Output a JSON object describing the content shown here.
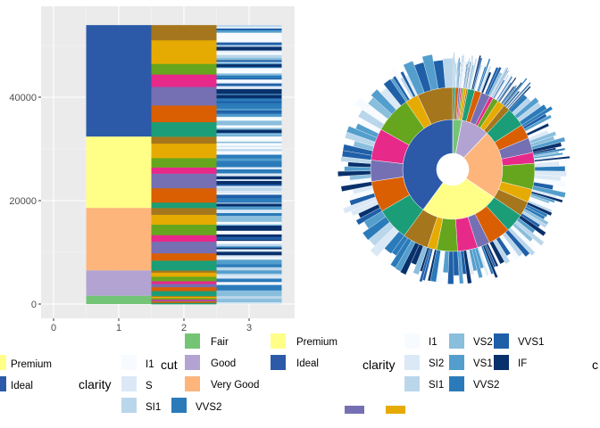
{
  "chart_data": [
    {
      "type": "bar",
      "subtype": "stacked",
      "x": [
        "1",
        "2",
        "3"
      ],
      "x_ticks": [
        "0",
        "1",
        "2",
        "3"
      ],
      "ylim": [
        0,
        55000
      ],
      "y_ticks": [
        0,
        20000,
        40000
      ],
      "y_tick_labels": [
        "0",
        "20000",
        "40000"
      ],
      "grid": true,
      "levels": [
        {
          "x": "1",
          "variable": "cut",
          "segments": [
            {
              "category": "Fair",
              "value": 1610
            },
            {
              "category": "Good",
              "value": 4906
            },
            {
              "category": "Very Good",
              "value": 12082
            },
            {
              "category": "Premium",
              "value": 13791
            },
            {
              "category": "Ideal",
              "value": 21551
            }
          ]
        },
        {
          "x": "2",
          "variable": "color",
          "note": "sequence of colour-coded segments within each cut",
          "segments": [
            {
              "category": "Fair",
              "value": 1610
            },
            {
              "category": "Good",
              "value": 4906
            },
            {
              "category": "Very Good",
              "value": 12082
            },
            {
              "category": "Premium",
              "value": 13791
            },
            {
              "category": "Ideal",
              "value": 21551
            }
          ]
        },
        {
          "x": "3",
          "variable": "clarity",
          "note": "many thin segments in blue shades",
          "segments": []
        }
      ]
    },
    {
      "type": "pie",
      "subtype": "sunburst",
      "rings": [
        "cut",
        "color",
        "clarity"
      ],
      "slices": [
        {
          "category": "Fair",
          "value": 1610
        },
        {
          "category": "Good",
          "value": 4906
        },
        {
          "category": "Very Good",
          "value": 12082
        },
        {
          "category": "Premium",
          "value": 13791
        },
        {
          "category": "Ideal",
          "value": 21551
        }
      ]
    }
  ],
  "palette": {
    "cut": {
      "Fair": "#74c476",
      "Good": "#b3a3d2",
      "Very Good": "#fdb57c",
      "Premium": "#ffff88",
      "Ideal": "#2c5aa8"
    },
    "color_sequence": [
      "#1b9e77",
      "#d95f02",
      "#7570b3",
      "#e7298a",
      "#66a61e",
      "#e6ab02",
      "#a6761d"
    ],
    "clarity": {
      "I1": "#f7fbff",
      "SI2": "#dbe9f6",
      "SI1": "#bad6eb",
      "VS2": "#89bedc",
      "VS1": "#539ecd",
      "VVS2": "#2b7bba",
      "VVS1": "#1f5fa8",
      "IF": "#08306b"
    }
  },
  "legends": {
    "left_partial": {
      "title": "clarity",
      "keys_a": [
        {
          "label": "Premium",
          "color": "#ffff88"
        },
        {
          "label": "Ideal",
          "color": "#2c5aa8"
        }
      ],
      "keys_b": [
        {
          "label": "I1",
          "color": "#f7fbff"
        },
        {
          "label": "S",
          "color": "#dbe9f6"
        },
        {
          "label": "SI1",
          "color": "#bad6eb"
        }
      ],
      "key_c": {
        "label": "VVS2",
        "color": "#2b7bba"
      }
    },
    "cut": {
      "title": "cut",
      "items": [
        {
          "label": "Fair",
          "color": "#74c476"
        },
        {
          "label": "Good",
          "color": "#b3a3d2"
        },
        {
          "label": "Very Good",
          "color": "#fdb57c"
        },
        {
          "label": "Premium",
          "color": "#ffff88"
        },
        {
          "label": "Ideal",
          "color": "#2c5aa8"
        }
      ]
    },
    "clarity": {
      "title": "clarity",
      "items": [
        {
          "label": "I1",
          "color": "#f7fbff"
        },
        {
          "label": "SI2",
          "color": "#dbe9f6"
        },
        {
          "label": "SI1",
          "color": "#bad6eb"
        },
        {
          "label": "VS2",
          "color": "#89bedc"
        },
        {
          "label": "VS1",
          "color": "#539ecd"
        },
        {
          "label": "VVS2",
          "color": "#2b7bba"
        },
        {
          "label": "VVS1",
          "color": "#1f5fa8"
        },
        {
          "label": "IF",
          "color": "#08306b"
        }
      ]
    },
    "edge_title": "c",
    "color_partial": [
      {
        "label": "",
        "color": "#7570b3"
      },
      {
        "label": "",
        "color": "#e6ab02"
      }
    ]
  }
}
